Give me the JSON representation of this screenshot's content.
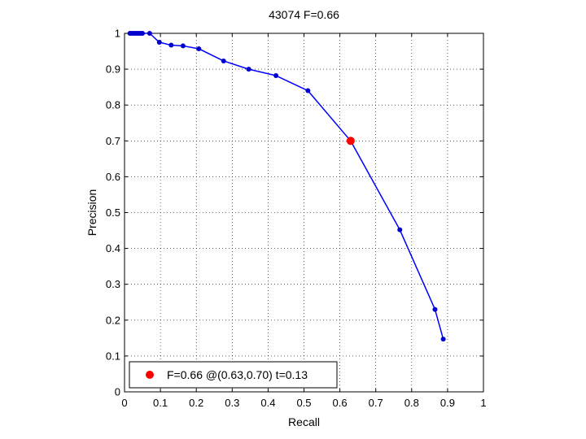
{
  "chart_data": {
    "type": "line",
    "title": "43074 F=0.66",
    "xlabel": "Recall",
    "ylabel": "Precision",
    "xlim": [
      0,
      1
    ],
    "ylim": [
      0,
      1
    ],
    "xticks": [
      0,
      0.1,
      0.2,
      0.3,
      0.4,
      0.5,
      0.6,
      0.7,
      0.8,
      0.9,
      1
    ],
    "yticks": [
      0,
      0.1,
      0.2,
      0.3,
      0.4,
      0.5,
      0.6,
      0.7,
      0.8,
      0.9,
      1
    ],
    "xtick_labels": [
      "0",
      "0.1",
      "0.2",
      "0.3",
      "0.4",
      "0.5",
      "0.6",
      "0.7",
      "0.8",
      "0.9",
      "1"
    ],
    "ytick_labels": [
      "0",
      "0.1",
      "0.2",
      "0.3",
      "0.4",
      "0.5",
      "0.6",
      "0.7",
      "0.8",
      "0.9",
      "1"
    ],
    "grid": true,
    "legend_position": "bottom-left",
    "series": [
      {
        "color": "#0000ff",
        "marker_color": "#0000cc",
        "x": [
          0.015,
          0.02,
          0.025,
          0.03,
          0.035,
          0.04,
          0.045,
          0.05,
          0.07,
          0.097,
          0.13,
          0.163,
          0.207,
          0.276,
          0.346,
          0.422,
          0.511,
          0.63,
          0.767,
          0.865,
          0.888
        ],
        "y": [
          1,
          1,
          1,
          1,
          1,
          1,
          1,
          1,
          1,
          0.975,
          0.967,
          0.965,
          0.957,
          0.923,
          0.9,
          0.882,
          0.84,
          0.7,
          0.452,
          0.23,
          0.147
        ]
      }
    ],
    "highlight": {
      "x": 0.63,
      "y": 0.7,
      "color": "#ff0000",
      "label": "F=0.66 @(0.63,0.70) t=0.13"
    }
  }
}
